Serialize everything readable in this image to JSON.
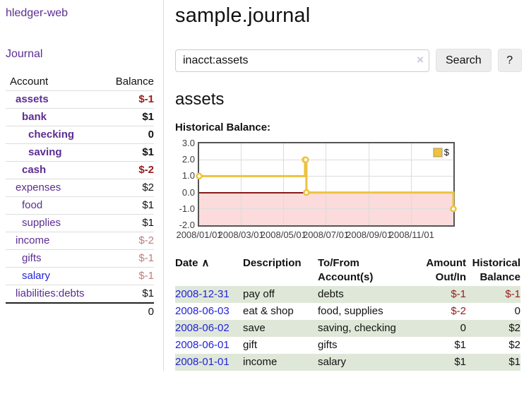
{
  "colors": {
    "link_purple": "#5c2d91",
    "link_blue": "#2222dd",
    "negative_strong": "#961c1c",
    "negative_muted": "#bf7d7d",
    "row_green": "#dfe8d8",
    "chart_line_gold": "#edc240",
    "chart_negative_region": "#fbdbdb",
    "chart_zero_line": "#8c1717",
    "chart_border": "#545454"
  },
  "app": {
    "title": "hledger-web"
  },
  "nav": {
    "journal": "Journal"
  },
  "sidebar": {
    "accounts": {
      "headers": {
        "account": "Account",
        "balance": "Balance"
      },
      "rows": [
        {
          "name": "assets",
          "balance": "$-1",
          "level": 1,
          "bold": true,
          "name_style": "purple",
          "balance_style": "negative-strong"
        },
        {
          "name": "bank",
          "balance": "$1",
          "level": 2,
          "bold": true,
          "name_style": "purple",
          "balance_style": "normal"
        },
        {
          "name": "checking",
          "balance": "0",
          "level": 3,
          "bold": true,
          "name_style": "purple",
          "balance_style": "normal"
        },
        {
          "name": "saving",
          "balance": "$1",
          "level": 3,
          "bold": true,
          "name_style": "purple",
          "balance_style": "normal"
        },
        {
          "name": "cash",
          "balance": "$-2",
          "level": 2,
          "bold": true,
          "name_style": "purple",
          "balance_style": "negative-strong"
        },
        {
          "name": "expenses",
          "balance": "$2",
          "level": 1,
          "bold": false,
          "name_style": "purple",
          "balance_style": "normal"
        },
        {
          "name": "food",
          "balance": "$1",
          "level": 2,
          "bold": false,
          "name_style": "purple",
          "balance_style": "normal"
        },
        {
          "name": "supplies",
          "balance": "$1",
          "level": 2,
          "bold": false,
          "name_style": "purple",
          "balance_style": "normal"
        },
        {
          "name": "income",
          "balance": "$-2",
          "level": 1,
          "bold": false,
          "name_style": "purple",
          "balance_style": "negative-muted"
        },
        {
          "name": "gifts",
          "balance": "$-1",
          "level": 2,
          "bold": false,
          "name_style": "purple",
          "balance_style": "negative-muted"
        },
        {
          "name": "salary",
          "balance": "$-1",
          "level": 2,
          "bold": false,
          "name_style": "blue",
          "balance_style": "negative-muted"
        },
        {
          "name": "liabilities:debts",
          "balance": "$1",
          "level": 1,
          "bold": false,
          "name_style": "purple",
          "balance_style": "normal"
        }
      ],
      "total": "0"
    }
  },
  "main": {
    "title": "sample.journal",
    "search": {
      "value": "inacct:assets",
      "clear_icon": "×",
      "search_button": "Search",
      "help_button": "?"
    },
    "account_heading": "assets",
    "chart_title": "Historical Balance:"
  },
  "chart_data": {
    "type": "line",
    "step": true,
    "title": "Historical Balance:",
    "series": [
      {
        "name": "$",
        "color": "#edc240",
        "points": [
          [
            "2008-01-01",
            1
          ],
          [
            "2008-06-01",
            2
          ],
          [
            "2008-06-02",
            2
          ],
          [
            "2008-06-03",
            0
          ],
          [
            "2008-12-31",
            -1
          ]
        ]
      }
    ],
    "x_range": [
      "2008-01-01",
      "2008-12-31"
    ],
    "x_ticks": [
      "2008/01/01",
      "2008/03/01",
      "2008/05/01",
      "2008/07/01",
      "2008/09/01",
      "2008/11/01"
    ],
    "y_ticks": [
      "3.0",
      "2.0",
      "1.0",
      "0.0",
      "-1.0",
      "-2.0"
    ],
    "ylim": [
      -2,
      3
    ],
    "grid": true,
    "legend_position": "top-right",
    "negative_region_below_zero": true
  },
  "register": {
    "headers": {
      "date": "Date",
      "sort_indicator": "∧",
      "description": "Description",
      "accounts": "To/From Account(s)",
      "amount": "Amount Out/In",
      "balance": "Historical Balance"
    },
    "rows": [
      {
        "date": "2008-12-31",
        "description": "pay off",
        "accounts": "debts",
        "amount": "$-1",
        "balance": "$-1",
        "amount_negative": true,
        "balance_negative": true
      },
      {
        "date": "2008-06-03",
        "description": "eat & shop",
        "accounts": "food, supplies",
        "amount": "$-2",
        "balance": "0",
        "amount_negative": true,
        "balance_negative": false
      },
      {
        "date": "2008-06-02",
        "description": "save",
        "accounts": "saving, checking",
        "amount": "0",
        "balance": "$2",
        "amount_negative": false,
        "balance_negative": false
      },
      {
        "date": "2008-06-01",
        "description": "gift",
        "accounts": "gifts",
        "amount": "$1",
        "balance": "$2",
        "amount_negative": false,
        "balance_negative": false
      },
      {
        "date": "2008-01-01",
        "description": "income",
        "accounts": "salary",
        "amount": "$1",
        "balance": "$1",
        "amount_negative": false,
        "balance_negative": false
      }
    ]
  }
}
